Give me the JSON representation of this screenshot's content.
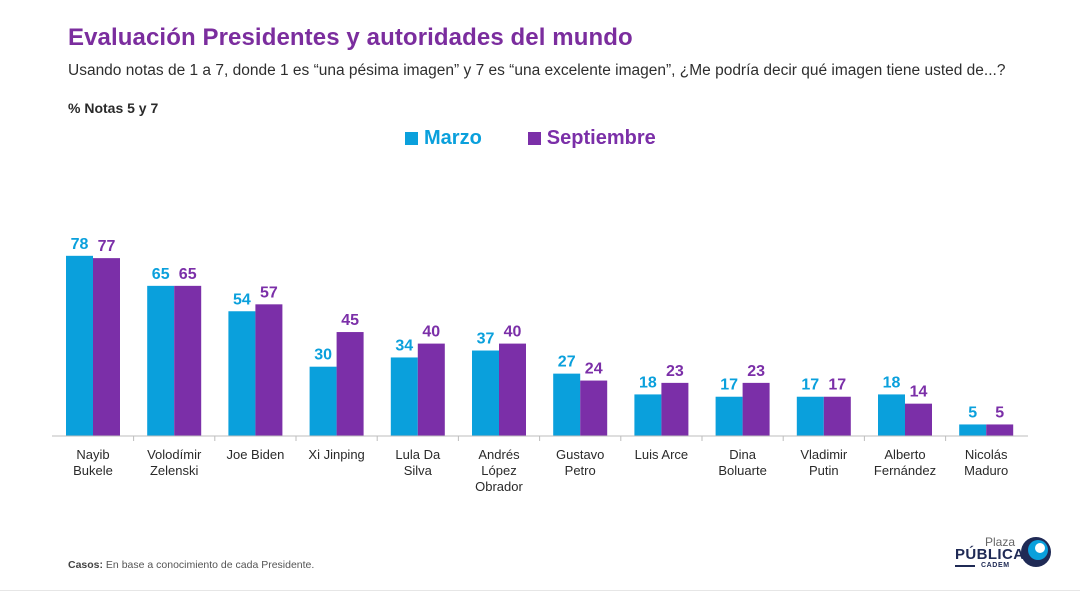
{
  "header": {
    "title": "Evaluación Presidentes y autoridades del mundo",
    "subtitle": "Usando notas de 1 a 7, donde 1 es “una pésima imagen” y 7 es “una excelente imagen”, ¿Me podría decir qué imagen tiene usted de...?",
    "note": "% Notas 5 y 7"
  },
  "colors": {
    "marzo": "#0aa0dc",
    "septiembre": "#7b2fa8",
    "title": "#7b2d9e"
  },
  "chart_data": {
    "type": "bar",
    "title": "Evaluación Presidentes y autoridades del mundo",
    "xlabel": "",
    "ylabel": "",
    "ylim": [
      0,
      100
    ],
    "grid": false,
    "legend_placement": "top-center",
    "categories": [
      [
        "Nayib",
        "Bukele"
      ],
      [
        "Volodímir",
        "Zelenski"
      ],
      [
        "Joe Biden"
      ],
      [
        "Xi Jinping"
      ],
      [
        "Lula Da",
        "Silva"
      ],
      [
        "Andrés",
        "López",
        "Obrador"
      ],
      [
        "Gustavo",
        "Petro"
      ],
      [
        "Luis Arce"
      ],
      [
        "Dina",
        "Boluarte"
      ],
      [
        "Vladimir",
        "Putin"
      ],
      [
        "Alberto",
        "Fernández"
      ],
      [
        "Nicolás",
        "Maduro"
      ]
    ],
    "series": [
      {
        "name": "Marzo",
        "values": [
          78,
          65,
          54,
          30,
          34,
          37,
          27,
          18,
          17,
          17,
          18,
          5
        ]
      },
      {
        "name": "Septiembre",
        "values": [
          77,
          65,
          57,
          45,
          40,
          40,
          24,
          23,
          23,
          17,
          14,
          5
        ]
      }
    ]
  },
  "footer": {
    "footnote_label": "Casos:",
    "footnote_text": " En base a conocimiento de cada Presidente.",
    "logo_top": "Plaza",
    "logo_main": "PÚBLICA",
    "logo_sub": "CADEM"
  }
}
